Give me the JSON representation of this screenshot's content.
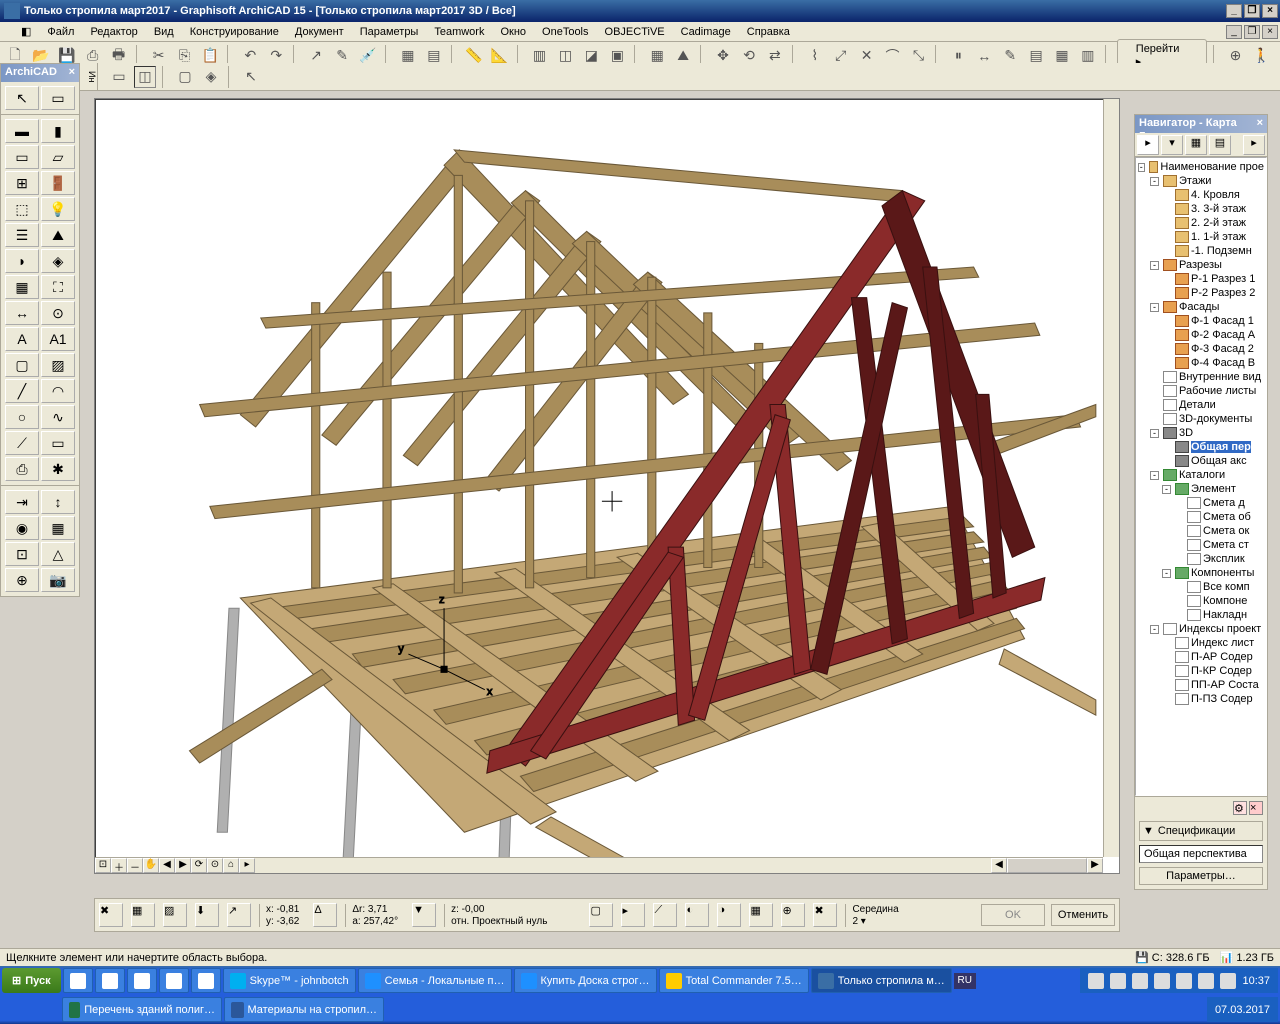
{
  "titlebar": {
    "text": "Только стропила март2017 - Graphisoft ArchiCAD 15 - [Только стропила март2017 3D / Все]"
  },
  "menubar": {
    "items": [
      "Файл",
      "Редактор",
      "Вид",
      "Конструирование",
      "Документ",
      "Параметры",
      "Teamwork",
      "Окно",
      "OneTools",
      "OBJECTiVE",
      "Cadimage",
      "Справка"
    ]
  },
  "toolbar_right": {
    "goto": "Перейти ▸"
  },
  "toolbox": {
    "title": "ArchiCAD"
  },
  "navigator": {
    "title": "Навигатор - Карта п…",
    "tree": [
      {
        "indent": 0,
        "expand": "-",
        "icon": "folder",
        "label": "Наименование прое"
      },
      {
        "indent": 1,
        "expand": "-",
        "icon": "folder",
        "label": "Этажи"
      },
      {
        "indent": 2,
        "expand": "",
        "icon": "folder",
        "label": "4. Кровля"
      },
      {
        "indent": 2,
        "expand": "",
        "icon": "folder",
        "label": "3. 3-й этаж"
      },
      {
        "indent": 2,
        "expand": "",
        "icon": "folder",
        "label": "2. 2-й этаж"
      },
      {
        "indent": 2,
        "expand": "",
        "icon": "folder",
        "label": "1. 1-й этаж"
      },
      {
        "indent": 2,
        "expand": "",
        "icon": "folder",
        "label": "-1. Подземн"
      },
      {
        "indent": 1,
        "expand": "-",
        "icon": "house",
        "label": "Разрезы"
      },
      {
        "indent": 2,
        "expand": "",
        "icon": "house",
        "label": "Р-1 Разрез 1"
      },
      {
        "indent": 2,
        "expand": "",
        "icon": "house",
        "label": "Р-2 Разрез 2"
      },
      {
        "indent": 1,
        "expand": "-",
        "icon": "house",
        "label": "Фасады"
      },
      {
        "indent": 2,
        "expand": "",
        "icon": "house",
        "label": "Ф-1 Фасад 1"
      },
      {
        "indent": 2,
        "expand": "",
        "icon": "house",
        "label": "Ф-2 Фасад A"
      },
      {
        "indent": 2,
        "expand": "",
        "icon": "house",
        "label": "Ф-3 Фасад 2"
      },
      {
        "indent": 2,
        "expand": "",
        "icon": "house",
        "label": "Ф-4 Фасад B"
      },
      {
        "indent": 1,
        "expand": "",
        "icon": "doc",
        "label": "Внутренние вид"
      },
      {
        "indent": 1,
        "expand": "",
        "icon": "doc",
        "label": "Рабочие листы"
      },
      {
        "indent": 1,
        "expand": "",
        "icon": "doc",
        "label": "Детали"
      },
      {
        "indent": 1,
        "expand": "",
        "icon": "doc",
        "label": "3D-документы"
      },
      {
        "indent": 1,
        "expand": "-",
        "icon": "3d",
        "label": "3D"
      },
      {
        "indent": 2,
        "expand": "",
        "icon": "3d",
        "label": "Общая пер",
        "sel": true
      },
      {
        "indent": 2,
        "expand": "",
        "icon": "3d",
        "label": "Общая акс"
      },
      {
        "indent": 1,
        "expand": "-",
        "icon": "cat",
        "label": "Каталоги"
      },
      {
        "indent": 2,
        "expand": "-",
        "icon": "cat",
        "label": "Элемент"
      },
      {
        "indent": 3,
        "expand": "",
        "icon": "doc",
        "label": "Смета д"
      },
      {
        "indent": 3,
        "expand": "",
        "icon": "doc",
        "label": "Смета об"
      },
      {
        "indent": 3,
        "expand": "",
        "icon": "doc",
        "label": "Смета ок"
      },
      {
        "indent": 3,
        "expand": "",
        "icon": "doc",
        "label": "Смета ст"
      },
      {
        "indent": 3,
        "expand": "",
        "icon": "doc",
        "label": "Эксплик"
      },
      {
        "indent": 2,
        "expand": "-",
        "icon": "cat",
        "label": "Компоненты"
      },
      {
        "indent": 3,
        "expand": "",
        "icon": "doc",
        "label": "Все комп"
      },
      {
        "indent": 3,
        "expand": "",
        "icon": "doc",
        "label": "Компоне"
      },
      {
        "indent": 3,
        "expand": "",
        "icon": "doc",
        "label": "Накладн"
      },
      {
        "indent": 1,
        "expand": "-",
        "icon": "doc",
        "label": "Индексы проект"
      },
      {
        "indent": 2,
        "expand": "",
        "icon": "doc",
        "label": "Индекс лист"
      },
      {
        "indent": 2,
        "expand": "",
        "icon": "doc",
        "label": "П-АР Содер"
      },
      {
        "indent": 2,
        "expand": "",
        "icon": "doc",
        "label": "П-КР Содер"
      },
      {
        "indent": 2,
        "expand": "",
        "icon": "doc",
        "label": "ПП-АР Соста"
      },
      {
        "indent": 2,
        "expand": "",
        "icon": "doc",
        "label": "П-ПЗ Содер"
      }
    ],
    "spec_toggle": "Спецификации",
    "spec_value": "Общая перспектива",
    "params_btn": "Параметры…"
  },
  "coords": {
    "x": "x: -0,81",
    "y": "y: -3,62",
    "dr": "Δr: 3,71",
    "a": "a: 257,42°",
    "z": "z: -0,00",
    "ref": "отн. Проектный нуль",
    "mode": "Середина",
    "ok": "OK",
    "cancel": "Отменить"
  },
  "statusbar": {
    "hint": "Щелкните элемент или начертите область выбора.",
    "disk_c": "C: 328.6 ГБ",
    "ram": "1.23 ГБ"
  },
  "taskbar": {
    "start": "Пуск",
    "row1": [
      {
        "label": "Skype™ - johnbotch"
      },
      {
        "label": "Семья - Локальные п…"
      },
      {
        "label": "Купить Доска строг…"
      },
      {
        "label": "Total Commander 7.5…"
      },
      {
        "label": "Только стропила м…",
        "active": true
      }
    ],
    "row2": [
      {
        "label": "Перечень зданий полиг…"
      },
      {
        "label": "Материалы на стропил…"
      }
    ],
    "lang": "RU",
    "time": "10:37",
    "date": "07.03.2017"
  },
  "colors": {
    "wood_light": "#c4a876",
    "wood_med": "#a88d5a",
    "wood_dark": "#6a5838",
    "red_light": "#8a2a2a",
    "red_dark": "#5a1818",
    "pole": "#b0b0b0"
  }
}
